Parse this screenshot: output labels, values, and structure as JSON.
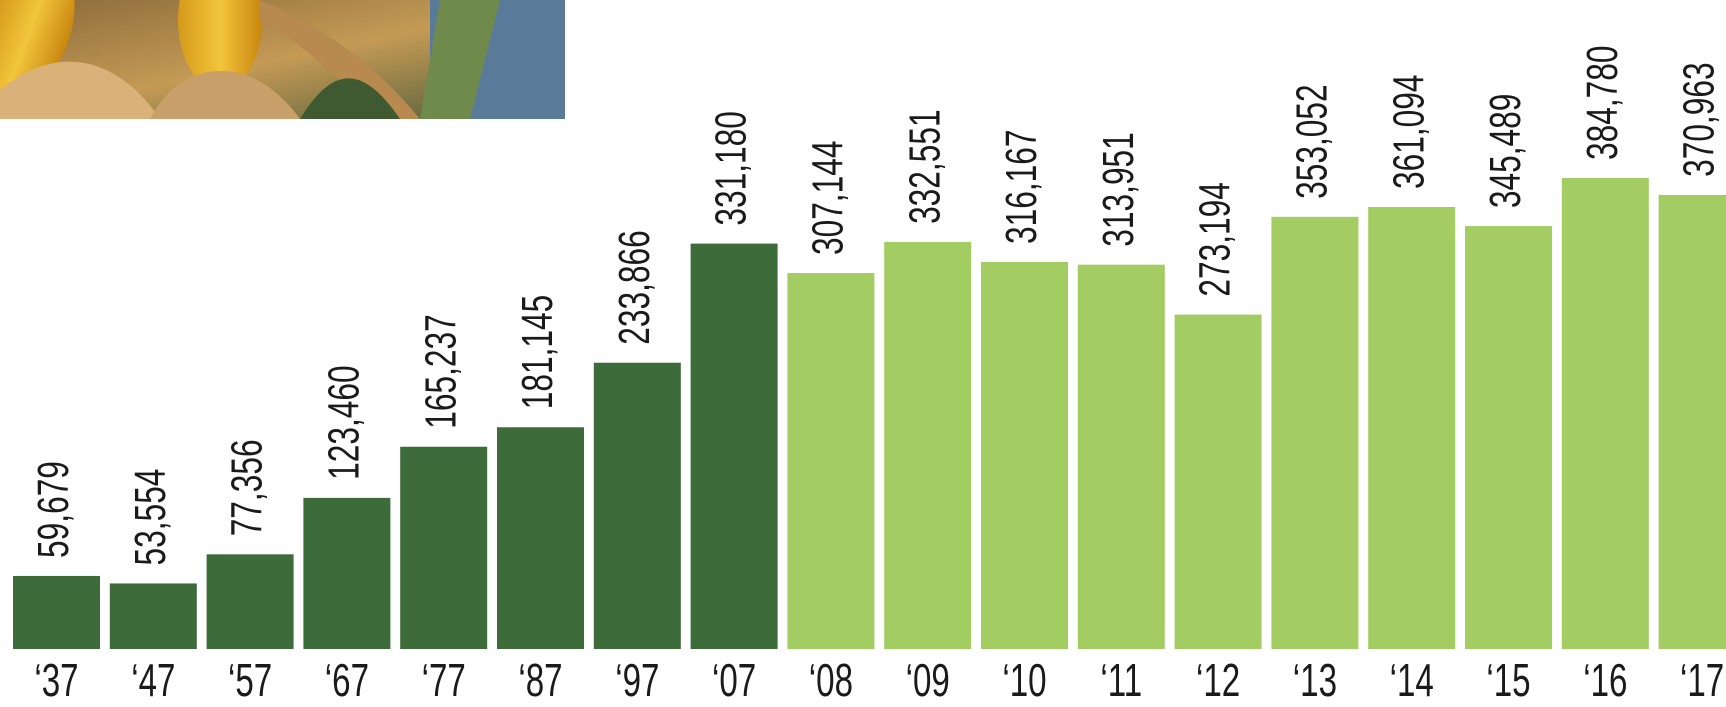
{
  "chart_data": {
    "type": "bar",
    "categories": [
      "‘37",
      "‘47",
      "‘57",
      "‘67",
      "‘77",
      "‘87",
      "‘97",
      "‘07",
      "‘08",
      "‘09",
      "‘10",
      "‘11",
      "‘12",
      "‘13",
      "‘14",
      "‘15",
      "‘16",
      "‘17"
    ],
    "values": [
      59679,
      53554,
      77356,
      123460,
      165237,
      181145,
      233866,
      331180,
      307144,
      332551,
      316167,
      313951,
      273194,
      353052,
      361094,
      345489,
      384780,
      370963
    ],
    "value_labels": [
      "59,679",
      "53,554",
      "77,356",
      "123,460",
      "165,237",
      "181,145",
      "233,866",
      "331,180",
      "307,144",
      "332,551",
      "316,167",
      "313,951",
      "273,194",
      "353,052",
      "361,094",
      "345,489",
      "384,780",
      "370,963"
    ],
    "colors": [
      "#3d6b39",
      "#3d6b39",
      "#3d6b39",
      "#3d6b39",
      "#3d6b39",
      "#3d6b39",
      "#3d6b39",
      "#3d6b39",
      "#a3cc62",
      "#a3cc62",
      "#a3cc62",
      "#a3cc62",
      "#a3cc62",
      "#a3cc62",
      "#a3cc62",
      "#a3cc62",
      "#a3cc62",
      "#a3cc62"
    ]
  }
}
